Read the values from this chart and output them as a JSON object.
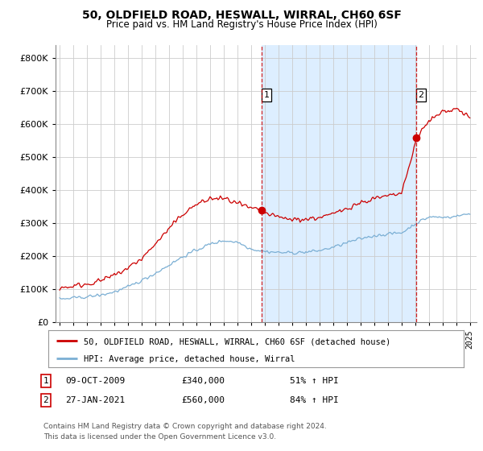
{
  "title": "50, OLDFIELD ROAD, HESWALL, WIRRAL, CH60 6SF",
  "subtitle": "Price paid vs. HM Land Registry's House Price Index (HPI)",
  "legend_line1": "50, OLDFIELD ROAD, HESWALL, WIRRAL, CH60 6SF (detached house)",
  "legend_line2": "HPI: Average price, detached house, Wirral",
  "table_rows": [
    {
      "num": "1",
      "date": "09-OCT-2009",
      "price": "£340,000",
      "change": "51% ↑ HPI"
    },
    {
      "num": "2",
      "date": "27-JAN-2021",
      "price": "£560,000",
      "change": "84% ↑ HPI"
    }
  ],
  "footnote1": "Contains HM Land Registry data © Crown copyright and database right 2024.",
  "footnote2": "This data is licensed under the Open Government Licence v3.0.",
  "red_color": "#cc0000",
  "blue_color": "#7bafd4",
  "shade_color": "#ddeeff",
  "sale1_year": 2009.77,
  "sale1_price": 340000,
  "sale2_year": 2021.07,
  "sale2_price": 560000,
  "ylim": [
    0,
    840000
  ],
  "xlim_start": 1994.7,
  "xlim_end": 2025.5,
  "bg_color": "#ffffff"
}
